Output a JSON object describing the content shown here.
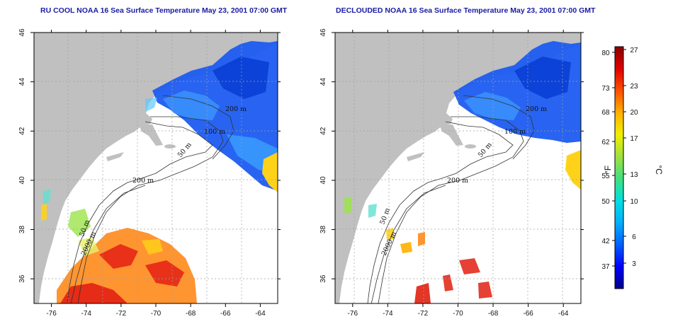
{
  "panels": [
    {
      "title": "RU COOL NOAA 16 Sea Surface Temperature May 23, 2001 07:00 GMT",
      "contour_labels": [
        "200 m",
        "100 m",
        "50 m",
        "200 m",
        "50 m",
        "2000 m"
      ]
    },
    {
      "title": "DECLOUDED NOAA 16 Sea Surface Temperature May 23, 2001 07:00 GMT",
      "contour_labels": [
        "200 m",
        "100 m",
        "50 m",
        "200 m",
        "50 m",
        "2000 m"
      ]
    }
  ],
  "axes": {
    "lon_ticks": [
      "-76",
      "-74",
      "-72",
      "-70",
      "-68",
      "-66",
      "-64"
    ],
    "lat_ticks": [
      "36",
      "38",
      "40",
      "42",
      "44",
      "46"
    ],
    "lon_range": [
      -77,
      -63
    ],
    "lat_range": [
      35,
      46
    ]
  },
  "colorbar": {
    "fahrenheit_ticks": [
      "80",
      "73",
      "68",
      "62",
      "55",
      "50",
      "42",
      "37"
    ],
    "celsius_ticks": [
      "27",
      "23",
      "20",
      "17",
      "13",
      "10",
      "6",
      "3"
    ],
    "fahrenheit_unit": "°F",
    "celsius_unit": "°C",
    "colors": [
      "#00008b",
      "#0000ff",
      "#0060ff",
      "#00b0ff",
      "#00e0e0",
      "#40e080",
      "#a0e040",
      "#f0f000",
      "#ffb000",
      "#ff5000",
      "#e00000",
      "#8b0000"
    ]
  },
  "colors": {
    "land": "#c0c0c0",
    "water": "#ffffff",
    "grid": "#a0a0a0"
  }
}
